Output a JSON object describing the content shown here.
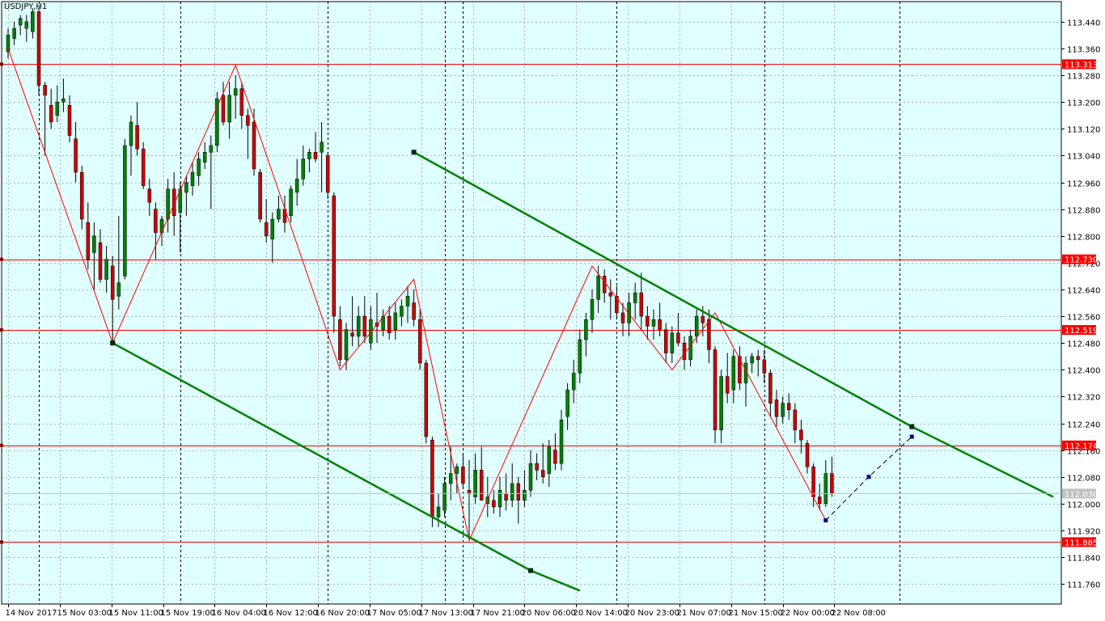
{
  "symbol": "USDJPY,H1",
  "colors": {
    "background": "#e0ffff",
    "grid": "#7f8c8c",
    "bull": "#008000",
    "bear": "#cc0000",
    "wick": "#000000",
    "hline": "#ff0000",
    "zigzag": "#ff0000",
    "channel": "#008000",
    "projection": "#000080",
    "price_tag_bg": "#ff0000",
    "bid_tag_bg": "#c0c0c0"
  },
  "chart_data": {
    "type": "candlestick",
    "y_range": [
      111.7,
      113.5
    ],
    "y_ticks": [
      "113.440",
      "113.360",
      "113.280",
      "113.200",
      "113.120",
      "113.040",
      "112.960",
      "112.880",
      "112.800",
      "112.720",
      "112.640",
      "112.560",
      "112.480",
      "112.400",
      "112.320",
      "112.240",
      "112.160",
      "112.080",
      "112.000",
      "111.920",
      "111.840",
      "111.760"
    ],
    "x_labels": [
      "14 Nov 2017",
      "15 Nov 03:00",
      "15 Nov 11:00",
      "15 Nov 19:00",
      "16 Nov 04:00",
      "16 Nov 12:00",
      "16 Nov 20:00",
      "17 Nov 05:00",
      "17 Nov 13:00",
      "17 Nov 21:00",
      "20 Nov 06:00",
      "20 Nov 14:00",
      "20 Nov 23:00",
      "21 Nov 07:00",
      "21 Nov 15:00",
      "22 Nov 00:00",
      "22 Nov 08:00"
    ],
    "price_levels": [
      {
        "label": "113.313",
        "value": 113.313
      },
      {
        "label": "112.730",
        "value": 112.73
      },
      {
        "label": "112.519",
        "value": 112.519
      },
      {
        "label": "112.174",
        "value": 112.174
      },
      {
        "label": "111.885",
        "value": 111.885
      }
    ],
    "bid": {
      "label": "112.030",
      "value": 112.03
    },
    "candles": [
      {
        "o": 113.35,
        "h": 113.42,
        "l": 113.33,
        "c": 113.4
      },
      {
        "o": 113.39,
        "h": 113.44,
        "l": 113.37,
        "c": 113.42
      },
      {
        "o": 113.43,
        "h": 113.46,
        "l": 113.4,
        "c": 113.45
      },
      {
        "o": 113.42,
        "h": 113.46,
        "l": 113.38,
        "c": 113.44
      },
      {
        "o": 113.41,
        "h": 113.48,
        "l": 113.39,
        "c": 113.47
      },
      {
        "o": 113.47,
        "h": 113.48,
        "l": 113.22,
        "c": 113.25
      },
      {
        "o": 113.25,
        "h": 113.26,
        "l": 113.04,
        "c": 113.22
      },
      {
        "o": 113.19,
        "h": 113.24,
        "l": 113.12,
        "c": 113.14
      },
      {
        "o": 113.16,
        "h": 113.25,
        "l": 113.14,
        "c": 113.2
      },
      {
        "o": 113.2,
        "h": 113.27,
        "l": 113.17,
        "c": 113.21
      },
      {
        "o": 113.19,
        "h": 113.22,
        "l": 113.08,
        "c": 113.1
      },
      {
        "o": 113.09,
        "h": 113.14,
        "l": 112.96,
        "c": 112.99
      },
      {
        "o": 112.99,
        "h": 113.01,
        "l": 112.82,
        "c": 112.85
      },
      {
        "o": 112.84,
        "h": 112.9,
        "l": 112.7,
        "c": 112.73
      },
      {
        "o": 112.75,
        "h": 112.84,
        "l": 112.64,
        "c": 112.8
      },
      {
        "o": 112.78,
        "h": 112.82,
        "l": 112.66,
        "c": 112.67
      },
      {
        "o": 112.67,
        "h": 112.77,
        "l": 112.63,
        "c": 112.73
      },
      {
        "o": 112.71,
        "h": 112.74,
        "l": 112.48,
        "c": 112.61
      },
      {
        "o": 112.62,
        "h": 112.86,
        "l": 112.58,
        "c": 112.66
      },
      {
        "o": 112.68,
        "h": 113.09,
        "l": 112.67,
        "c": 113.07
      },
      {
        "o": 113.07,
        "h": 113.16,
        "l": 112.98,
        "c": 113.14
      },
      {
        "o": 113.13,
        "h": 113.2,
        "l": 113.04,
        "c": 113.06
      },
      {
        "o": 113.06,
        "h": 113.08,
        "l": 112.94,
        "c": 112.95
      },
      {
        "o": 112.94,
        "h": 112.97,
        "l": 112.86,
        "c": 112.9
      },
      {
        "o": 112.88,
        "h": 112.9,
        "l": 112.73,
        "c": 112.81
      },
      {
        "o": 112.81,
        "h": 112.86,
        "l": 112.77,
        "c": 112.85
      },
      {
        "o": 112.85,
        "h": 112.97,
        "l": 112.81,
        "c": 112.94
      },
      {
        "o": 112.94,
        "h": 112.99,
        "l": 112.8,
        "c": 112.86
      },
      {
        "o": 112.87,
        "h": 112.96,
        "l": 112.75,
        "c": 112.94
      },
      {
        "o": 112.93,
        "h": 112.98,
        "l": 112.86,
        "c": 112.96
      },
      {
        "o": 112.95,
        "h": 113.02,
        "l": 112.92,
        "c": 112.99
      },
      {
        "o": 112.98,
        "h": 113.05,
        "l": 112.95,
        "c": 113.03
      },
      {
        "o": 113.02,
        "h": 113.08,
        "l": 113.0,
        "c": 113.05
      },
      {
        "o": 113.05,
        "h": 113.1,
        "l": 112.88,
        "c": 113.07
      },
      {
        "o": 113.07,
        "h": 113.23,
        "l": 113.05,
        "c": 113.21
      },
      {
        "o": 113.22,
        "h": 113.26,
        "l": 113.13,
        "c": 113.14
      },
      {
        "o": 113.14,
        "h": 113.26,
        "l": 113.09,
        "c": 113.22
      },
      {
        "o": 113.22,
        "h": 113.28,
        "l": 113.15,
        "c": 113.24
      },
      {
        "o": 113.24,
        "h": 113.26,
        "l": 113.12,
        "c": 113.16
      },
      {
        "o": 113.16,
        "h": 113.18,
        "l": 113.03,
        "c": 113.13
      },
      {
        "o": 113.14,
        "h": 113.18,
        "l": 112.98,
        "c": 113.0
      },
      {
        "o": 112.99,
        "h": 113.0,
        "l": 112.84,
        "c": 112.85
      },
      {
        "o": 112.84,
        "h": 112.91,
        "l": 112.78,
        "c": 112.8
      },
      {
        "o": 112.79,
        "h": 112.87,
        "l": 112.72,
        "c": 112.85
      },
      {
        "o": 112.85,
        "h": 112.92,
        "l": 112.84,
        "c": 112.88
      },
      {
        "o": 112.88,
        "h": 112.92,
        "l": 112.81,
        "c": 112.84
      },
      {
        "o": 112.86,
        "h": 112.95,
        "l": 112.84,
        "c": 112.94
      },
      {
        "o": 112.93,
        "h": 113.03,
        "l": 112.89,
        "c": 112.97
      },
      {
        "o": 112.97,
        "h": 113.07,
        "l": 112.95,
        "c": 113.03
      },
      {
        "o": 113.03,
        "h": 113.06,
        "l": 112.99,
        "c": 113.05
      },
      {
        "o": 113.05,
        "h": 113.11,
        "l": 113.02,
        "c": 113.03
      },
      {
        "o": 113.05,
        "h": 113.14,
        "l": 112.93,
        "c": 113.08
      },
      {
        "o": 113.04,
        "h": 113.05,
        "l": 112.91,
        "c": 112.93
      },
      {
        "o": 112.92,
        "h": 112.93,
        "l": 112.51,
        "c": 112.56
      },
      {
        "o": 112.55,
        "h": 112.59,
        "l": 112.41,
        "c": 112.43
      },
      {
        "o": 112.43,
        "h": 112.54,
        "l": 112.4,
        "c": 112.52
      },
      {
        "o": 112.51,
        "h": 112.62,
        "l": 112.47,
        "c": 112.5
      },
      {
        "o": 112.5,
        "h": 112.59,
        "l": 112.47,
        "c": 112.56
      },
      {
        "o": 112.56,
        "h": 112.62,
        "l": 112.48,
        "c": 112.5
      },
      {
        "o": 112.48,
        "h": 112.59,
        "l": 112.46,
        "c": 112.55
      },
      {
        "o": 112.54,
        "h": 112.63,
        "l": 112.48,
        "c": 112.53
      },
      {
        "o": 112.52,
        "h": 112.58,
        "l": 112.5,
        "c": 112.56
      },
      {
        "o": 112.56,
        "h": 112.59,
        "l": 112.49,
        "c": 112.51
      },
      {
        "o": 112.52,
        "h": 112.6,
        "l": 112.49,
        "c": 112.57
      },
      {
        "o": 112.56,
        "h": 112.61,
        "l": 112.53,
        "c": 112.59
      },
      {
        "o": 112.59,
        "h": 112.65,
        "l": 112.54,
        "c": 112.62
      },
      {
        "o": 112.6,
        "h": 112.64,
        "l": 112.53,
        "c": 112.55
      },
      {
        "o": 112.55,
        "h": 112.58,
        "l": 112.4,
        "c": 112.42
      },
      {
        "o": 112.42,
        "h": 112.43,
        "l": 112.18,
        "c": 112.2
      },
      {
        "o": 112.19,
        "h": 112.2,
        "l": 111.93,
        "c": 111.96
      },
      {
        "o": 111.96,
        "h": 112.03,
        "l": 111.93,
        "c": 111.99
      },
      {
        "o": 111.98,
        "h": 112.08,
        "l": 111.96,
        "c": 112.06
      },
      {
        "o": 112.06,
        "h": 112.17,
        "l": 112.01,
        "c": 112.09
      },
      {
        "o": 112.09,
        "h": 112.12,
        "l": 112.03,
        "c": 112.11
      },
      {
        "o": 112.11,
        "h": 112.15,
        "l": 112.05,
        "c": 112.06
      },
      {
        "o": 112.04,
        "h": 112.13,
        "l": 111.9,
        "c": 112.03
      },
      {
        "o": 112.02,
        "h": 112.15,
        "l": 112.0,
        "c": 112.1
      },
      {
        "o": 112.1,
        "h": 112.17,
        "l": 112.02,
        "c": 112.01
      },
      {
        "o": 112.0,
        "h": 112.08,
        "l": 111.96,
        "c": 112.02
      },
      {
        "o": 112.01,
        "h": 112.04,
        "l": 111.97,
        "c": 111.99
      },
      {
        "o": 111.99,
        "h": 112.08,
        "l": 111.96,
        "c": 112.04
      },
      {
        "o": 112.03,
        "h": 112.09,
        "l": 111.98,
        "c": 112.01
      },
      {
        "o": 112.01,
        "h": 112.12,
        "l": 111.99,
        "c": 112.06
      },
      {
        "o": 112.06,
        "h": 112.08,
        "l": 111.94,
        "c": 112.01
      },
      {
        "o": 112.01,
        "h": 112.1,
        "l": 111.99,
        "c": 112.04
      },
      {
        "o": 112.04,
        "h": 112.16,
        "l": 112.02,
        "c": 112.12
      },
      {
        "o": 112.12,
        "h": 112.15,
        "l": 112.07,
        "c": 112.1
      },
      {
        "o": 112.1,
        "h": 112.18,
        "l": 112.06,
        "c": 112.08
      },
      {
        "o": 112.09,
        "h": 112.19,
        "l": 112.05,
        "c": 112.17
      },
      {
        "o": 112.16,
        "h": 112.21,
        "l": 112.1,
        "c": 112.12
      },
      {
        "o": 112.12,
        "h": 112.28,
        "l": 112.1,
        "c": 112.25
      },
      {
        "o": 112.26,
        "h": 112.36,
        "l": 112.22,
        "c": 112.34
      },
      {
        "o": 112.34,
        "h": 112.43,
        "l": 112.3,
        "c": 112.39
      },
      {
        "o": 112.39,
        "h": 112.52,
        "l": 112.36,
        "c": 112.49
      },
      {
        "o": 112.49,
        "h": 112.57,
        "l": 112.44,
        "c": 112.55
      },
      {
        "o": 112.55,
        "h": 112.64,
        "l": 112.51,
        "c": 112.61
      },
      {
        "o": 112.61,
        "h": 112.71,
        "l": 112.57,
        "c": 112.68
      },
      {
        "o": 112.68,
        "h": 112.7,
        "l": 112.6,
        "c": 112.63
      },
      {
        "o": 112.63,
        "h": 112.67,
        "l": 112.55,
        "c": 112.62
      },
      {
        "o": 112.62,
        "h": 112.65,
        "l": 112.55,
        "c": 112.57
      },
      {
        "o": 112.57,
        "h": 112.6,
        "l": 112.5,
        "c": 112.54
      },
      {
        "o": 112.54,
        "h": 112.63,
        "l": 112.5,
        "c": 112.6
      },
      {
        "o": 112.6,
        "h": 112.66,
        "l": 112.55,
        "c": 112.63
      },
      {
        "o": 112.63,
        "h": 112.69,
        "l": 112.52,
        "c": 112.56
      },
      {
        "o": 112.56,
        "h": 112.59,
        "l": 112.49,
        "c": 112.53
      },
      {
        "o": 112.53,
        "h": 112.58,
        "l": 112.49,
        "c": 112.55
      },
      {
        "o": 112.55,
        "h": 112.6,
        "l": 112.5,
        "c": 112.52
      },
      {
        "o": 112.52,
        "h": 112.54,
        "l": 112.42,
        "c": 112.45
      },
      {
        "o": 112.45,
        "h": 112.53,
        "l": 112.42,
        "c": 112.51
      },
      {
        "o": 112.51,
        "h": 112.57,
        "l": 112.47,
        "c": 112.48
      },
      {
        "o": 112.48,
        "h": 112.5,
        "l": 112.4,
        "c": 112.43
      },
      {
        "o": 112.43,
        "h": 112.52,
        "l": 112.41,
        "c": 112.5
      },
      {
        "o": 112.5,
        "h": 112.58,
        "l": 112.48,
        "c": 112.56
      },
      {
        "o": 112.56,
        "h": 112.59,
        "l": 112.5,
        "c": 112.54
      },
      {
        "o": 112.55,
        "h": 112.58,
        "l": 112.42,
        "c": 112.46
      },
      {
        "o": 112.46,
        "h": 112.47,
        "l": 112.18,
        "c": 112.22
      },
      {
        "o": 112.22,
        "h": 112.4,
        "l": 112.18,
        "c": 112.38
      },
      {
        "o": 112.38,
        "h": 112.45,
        "l": 112.3,
        "c": 112.33
      },
      {
        "o": 112.34,
        "h": 112.46,
        "l": 112.3,
        "c": 112.44
      },
      {
        "o": 112.44,
        "h": 112.47,
        "l": 112.34,
        "c": 112.36
      },
      {
        "o": 112.36,
        "h": 112.44,
        "l": 112.29,
        "c": 112.42
      },
      {
        "o": 112.42,
        "h": 112.45,
        "l": 112.39,
        "c": 112.44
      },
      {
        "o": 112.44,
        "h": 112.46,
        "l": 112.38,
        "c": 112.43
      },
      {
        "o": 112.43,
        "h": 112.46,
        "l": 112.36,
        "c": 112.39
      },
      {
        "o": 112.39,
        "h": 112.4,
        "l": 112.26,
        "c": 112.3
      },
      {
        "o": 112.31,
        "h": 112.34,
        "l": 112.23,
        "c": 112.26
      },
      {
        "o": 112.26,
        "h": 112.32,
        "l": 112.24,
        "c": 112.3
      },
      {
        "o": 112.3,
        "h": 112.33,
        "l": 112.25,
        "c": 112.28
      },
      {
        "o": 112.28,
        "h": 112.3,
        "l": 112.18,
        "c": 112.22
      },
      {
        "o": 112.22,
        "h": 112.25,
        "l": 112.15,
        "c": 112.19
      },
      {
        "o": 112.18,
        "h": 112.19,
        "l": 112.09,
        "c": 112.11
      },
      {
        "o": 112.11,
        "h": 112.12,
        "l": 111.99,
        "c": 112.02
      },
      {
        "o": 112.02,
        "h": 112.06,
        "l": 111.98,
        "c": 112.0
      },
      {
        "o": 112.0,
        "h": 112.13,
        "l": 111.99,
        "c": 112.09
      },
      {
        "o": 112.09,
        "h": 112.14,
        "l": 112.02,
        "c": 112.03
      }
    ],
    "zigzag": [
      {
        "i": 0,
        "p": 113.36
      },
      {
        "i": 17,
        "p": 112.48
      },
      {
        "i": 37,
        "p": 113.31
      },
      {
        "i": 54,
        "p": 112.4
      },
      {
        "i": 66,
        "p": 112.67
      },
      {
        "i": 75,
        "p": 111.89
      },
      {
        "i": 95,
        "p": 112.71
      },
      {
        "i": 108,
        "p": 112.4
      },
      {
        "i": 115,
        "p": 112.57
      },
      {
        "i": 133,
        "p": 111.95
      }
    ],
    "channel_upper": [
      {
        "i": 66,
        "p": 113.05
      },
      {
        "i": 147,
        "p": 112.23
      },
      {
        "i": 170,
        "p": 112.02
      }
    ],
    "channel_lower": [
      {
        "i": 17,
        "p": 112.48
      },
      {
        "i": 85,
        "p": 111.8
      },
      {
        "i": 93,
        "p": 111.74
      }
    ],
    "projection": [
      {
        "i": 133,
        "p": 111.95
      },
      {
        "i": 140,
        "p": 112.08
      },
      {
        "i": 147,
        "p": 112.2
      }
    ],
    "vlines_candle_index": [
      5,
      28,
      52,
      71,
      74,
      99,
      123,
      145
    ]
  }
}
